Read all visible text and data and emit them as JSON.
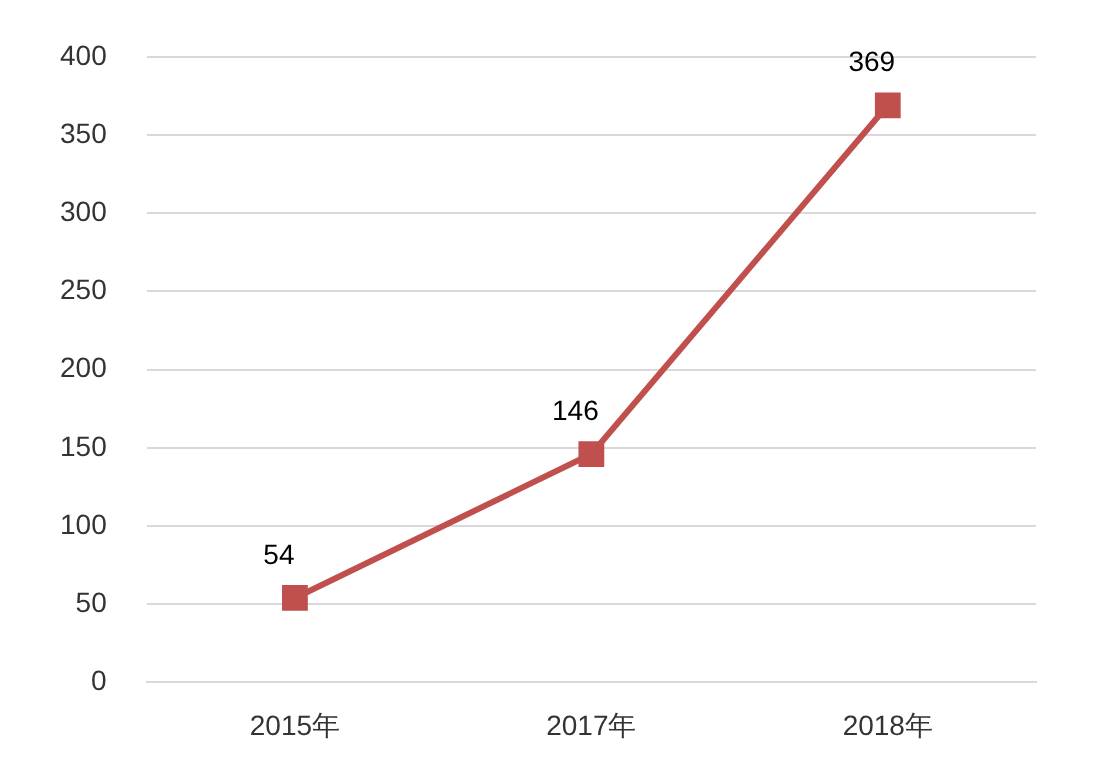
{
  "chart_data": {
    "type": "line",
    "categories": [
      "2015年",
      "2017年",
      "2018年"
    ],
    "series": [
      {
        "color": "#c0504d",
        "values": [
          54,
          146,
          369
        ]
      }
    ],
    "ylim": [
      0,
      400
    ],
    "yticks": [
      0,
      50,
      100,
      150,
      200,
      250,
      300,
      350,
      400
    ],
    "grid": "y",
    "legend": false,
    "marker": "square",
    "line_style": "solid",
    "data_labels": true
  }
}
